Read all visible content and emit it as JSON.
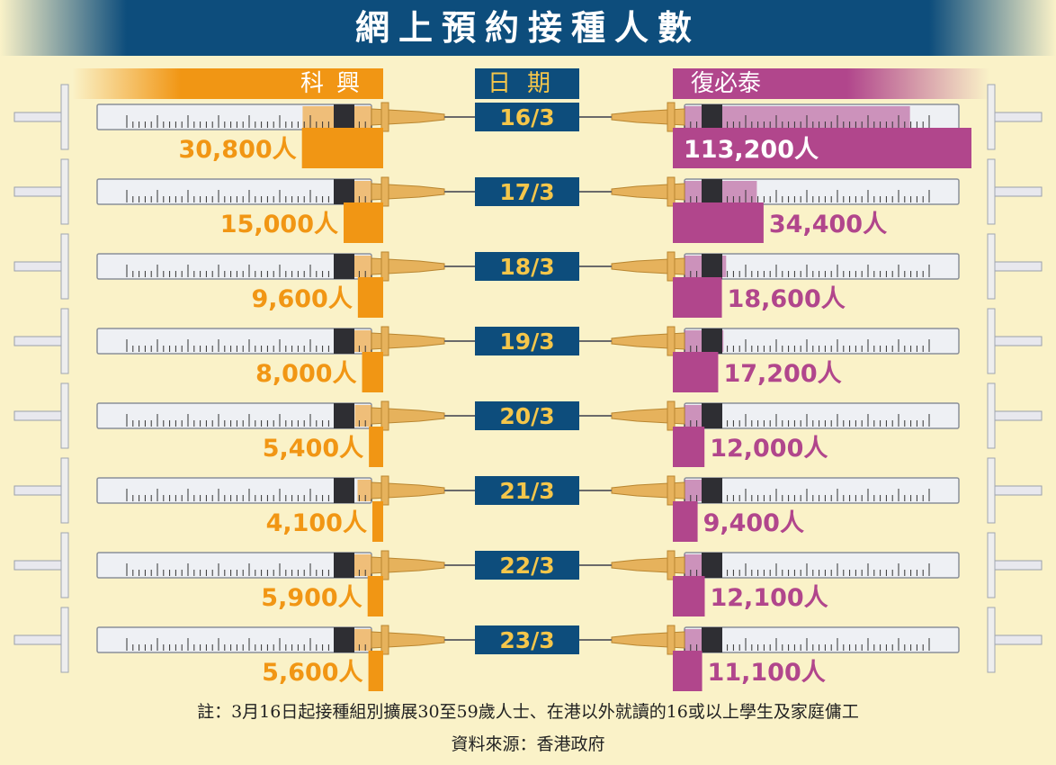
{
  "title": "網上預約接種人數",
  "headers": {
    "left": "科興",
    "middle": "日期",
    "right": "復必泰"
  },
  "colors": {
    "left": "#f19614",
    "right": "#b1468c",
    "date_box": "#0d4d7c",
    "background": "#faf2c8"
  },
  "chart_data": {
    "type": "bar",
    "categories": [
      "16/3",
      "17/3",
      "18/3",
      "19/3",
      "20/3",
      "21/3",
      "22/3",
      "23/3"
    ],
    "series": [
      {
        "name": "科興",
        "values": [
          30800,
          15000,
          9600,
          8000,
          5400,
          4100,
          5900,
          5600
        ],
        "labels": [
          "30,800人",
          "15,000人",
          "9,600人",
          "8,000人",
          "5,400人",
          "4,100人",
          "5,900人",
          "5,600人"
        ]
      },
      {
        "name": "復必泰",
        "values": [
          113200,
          34400,
          18600,
          17200,
          12000,
          9400,
          12100,
          11100
        ],
        "labels": [
          "113,200人",
          "34,400人",
          "18,600人",
          "17,200人",
          "12,000人",
          "9,400人",
          "12,100人",
          "11,100人"
        ]
      }
    ]
  },
  "footer": {
    "note": "註：3月16日起接種組別擴展30至59歲人士、在港以外就讀的16或以上學生及家庭傭工",
    "source": "資料來源：香港政府"
  }
}
